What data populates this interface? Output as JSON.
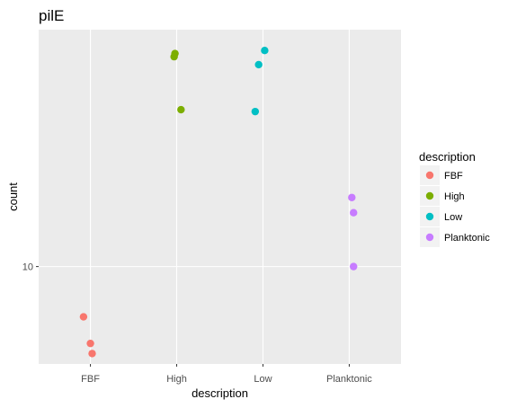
{
  "chart_data": {
    "type": "scatter",
    "title": "pilE",
    "xlabel": "description",
    "ylabel": "count",
    "x_type": "categorical",
    "categories": [
      "FBF",
      "High",
      "Low",
      "Planktonic"
    ],
    "y_scale": "log10",
    "y_ticks": [
      10
    ],
    "y_tick_labels": [
      "10"
    ],
    "ylim": [
      7.3,
      21.5
    ],
    "grid": true,
    "legend_title": "description",
    "legend_position": "right",
    "series": [
      {
        "name": "FBF",
        "color": "#F8766D",
        "points": [
          {
            "x": "FBF",
            "jitter": -0.08,
            "y": 8.5
          },
          {
            "x": "FBF",
            "jitter": 0.0,
            "y": 7.8
          },
          {
            "x": "FBF",
            "jitter": 0.02,
            "y": 7.55
          }
        ]
      },
      {
        "name": "High",
        "color": "#7CAE00",
        "points": [
          {
            "x": "High",
            "jitter": -0.03,
            "y": 19.7
          },
          {
            "x": "High",
            "jitter": -0.02,
            "y": 19.9
          },
          {
            "x": "High",
            "jitter": 0.05,
            "y": 16.6
          }
        ]
      },
      {
        "name": "Low",
        "color": "#00BFC4",
        "points": [
          {
            "x": "Low",
            "jitter": 0.02,
            "y": 20.1
          },
          {
            "x": "Low",
            "jitter": -0.05,
            "y": 19.2
          },
          {
            "x": "Low",
            "jitter": -0.09,
            "y": 16.5
          }
        ]
      },
      {
        "name": "Planktonic",
        "color": "#C77CFF",
        "points": [
          {
            "x": "Planktonic",
            "jitter": 0.03,
            "y": 12.5
          },
          {
            "x": "Planktonic",
            "jitter": 0.05,
            "y": 11.9
          },
          {
            "x": "Planktonic",
            "jitter": 0.05,
            "y": 10.0
          }
        ]
      }
    ]
  },
  "style": {
    "panel_bg": "#EBEBEB",
    "grid_major": "#FFFFFF",
    "legend_key_bg": "#F2F2F2"
  }
}
